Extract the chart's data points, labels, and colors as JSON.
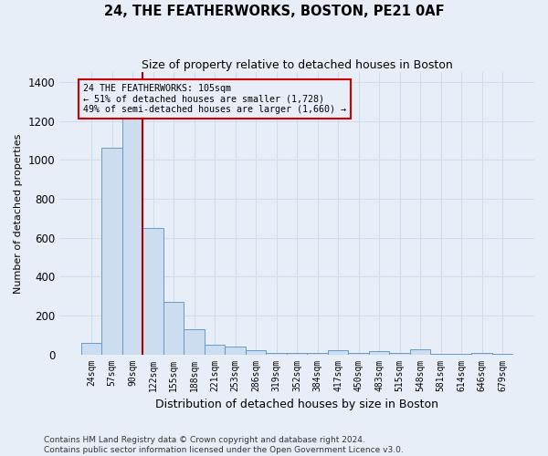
{
  "title": "24, THE FEATHERWORKS, BOSTON, PE21 0AF",
  "subtitle": "Size of property relative to detached houses in Boston",
  "xlabel": "Distribution of detached houses by size in Boston",
  "ylabel": "Number of detached properties",
  "footnote": "Contains HM Land Registry data © Crown copyright and database right 2024.\nContains public sector information licensed under the Open Government Licence v3.0.",
  "bins": [
    "24sqm",
    "57sqm",
    "90sqm",
    "122sqm",
    "155sqm",
    "188sqm",
    "221sqm",
    "253sqm",
    "286sqm",
    "319sqm",
    "352sqm",
    "384sqm",
    "417sqm",
    "450sqm",
    "483sqm",
    "515sqm",
    "548sqm",
    "581sqm",
    "614sqm",
    "646sqm",
    "679sqm"
  ],
  "values": [
    60,
    1060,
    1270,
    650,
    270,
    130,
    50,
    40,
    20,
    8,
    5,
    5,
    20,
    5,
    15,
    5,
    25,
    3,
    3,
    8,
    2
  ],
  "bar_color": "#ccddf0",
  "bar_edge_color": "#6699cc",
  "grid_color": "#d0dcea",
  "bg_color": "#e8eef8",
  "vline_color": "#aa0000",
  "vline_bin_index": 2,
  "annotation_text": "24 THE FEATHERWORKS: 105sqm\n← 51% of detached houses are smaller (1,728)\n49% of semi-detached houses are larger (1,660) →",
  "annotation_box_color": "#cc0000",
  "ylim": [
    0,
    1450
  ],
  "yticks": [
    0,
    200,
    400,
    600,
    800,
    1000,
    1200,
    1400
  ]
}
